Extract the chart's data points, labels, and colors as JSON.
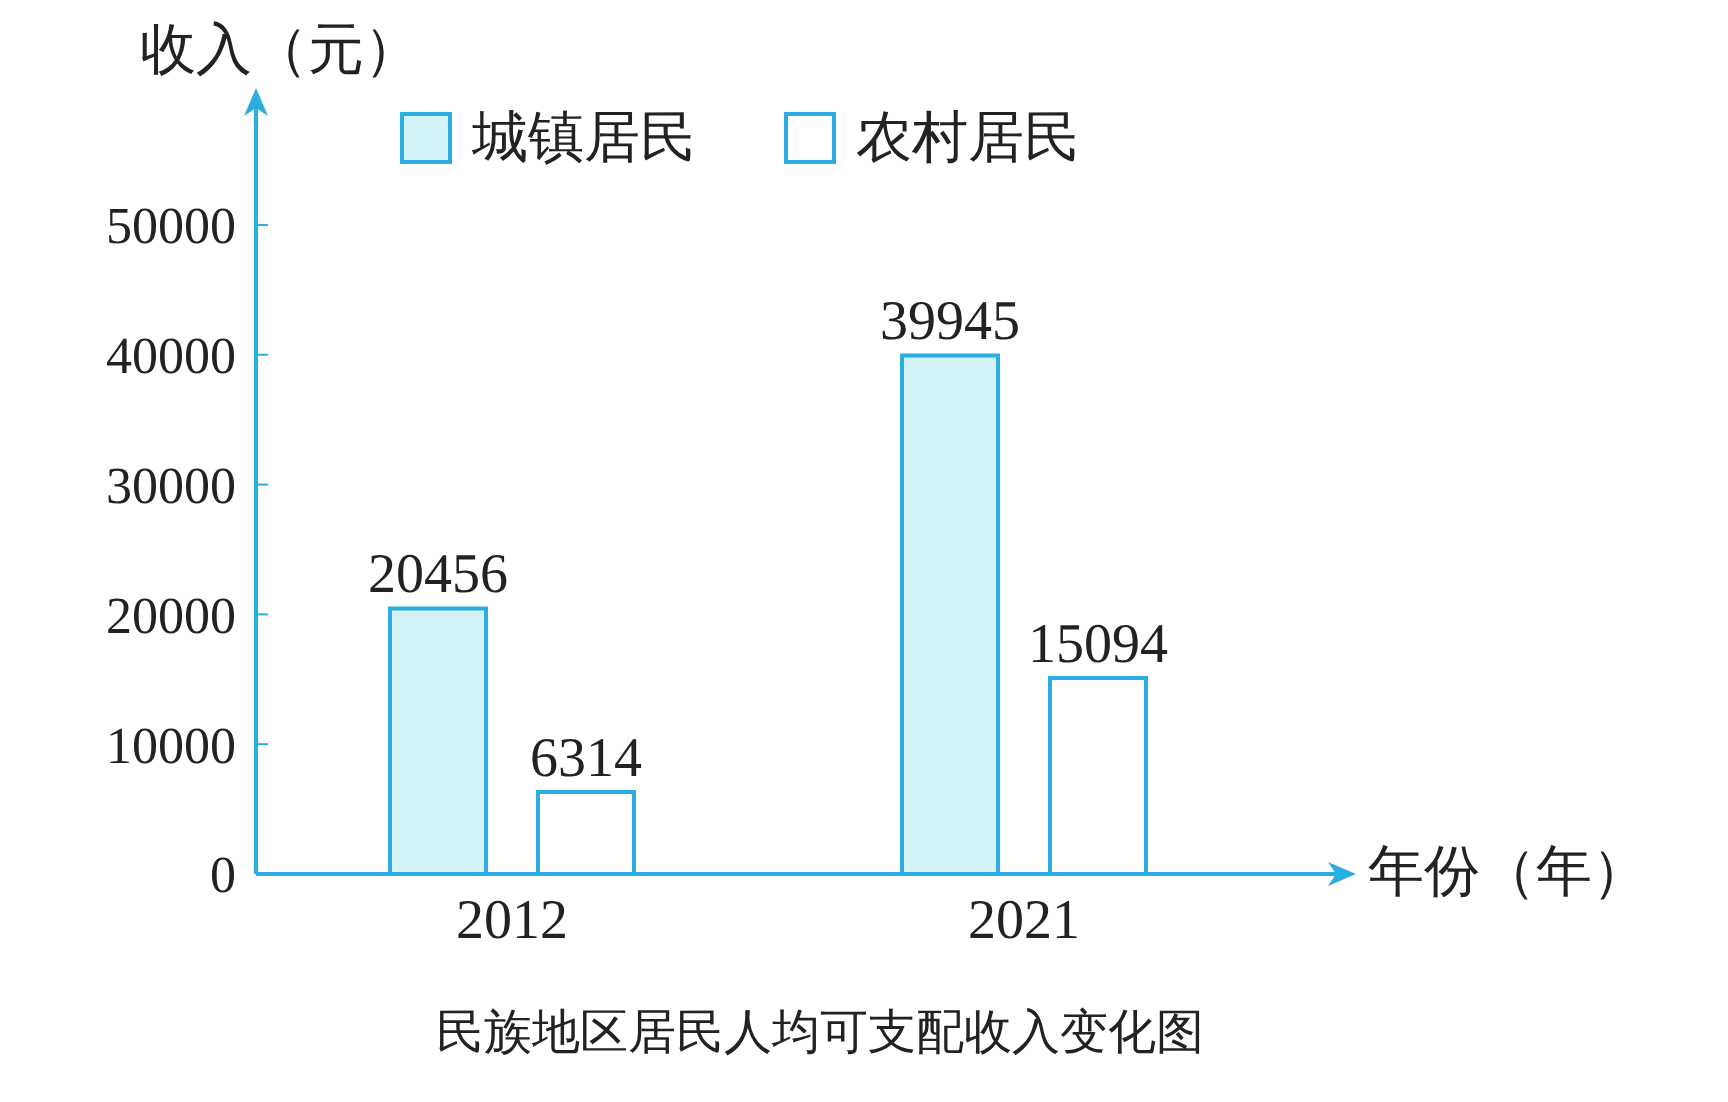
{
  "chart_data": {
    "type": "bar",
    "title": "民族地区居民人均可支配收入变化图",
    "ylabel": "收入（元）",
    "xlabel": "年份（年）",
    "categories": [
      "2012",
      "2021"
    ],
    "series": [
      {
        "name": "城镇居民",
        "color": "#d4f3f9",
        "values": [
          20456,
          39945
        ]
      },
      {
        "name": "农村居民",
        "color": "#ffffff",
        "values": [
          6314,
          15094
        ]
      }
    ],
    "ylim": [
      0,
      55000
    ],
    "yticks": [
      0,
      10000,
      20000,
      30000,
      40000,
      50000
    ],
    "grid": false,
    "legend": "top",
    "data_labels": true
  }
}
